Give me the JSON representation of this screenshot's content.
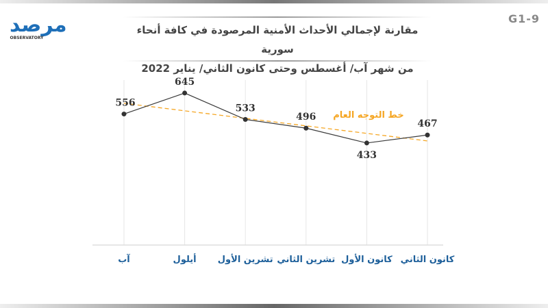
{
  "figure_code": "G1-9",
  "logo": {
    "text": "مرصد",
    "subtext": "OBSERVATORY"
  },
  "chart_data": {
    "type": "line",
    "title": "مقارنة لإجمالي الأحداث الأمنية المرصودة في كافة أنحاء سورية",
    "subtitle": "من شهر آب/ أغسطس وحتى كانون الثاني/ يناير 2022",
    "categories": [
      "آب",
      "أيلول",
      "تشرين الأول",
      "تشرين الثاني",
      "كانون الأول",
      "كانون الثاني"
    ],
    "series": [
      {
        "name": "الأحداث الأمنية",
        "values": [
          556,
          645,
          533,
          496,
          433,
          467
        ],
        "color": "#3a3a3a"
      }
    ],
    "trendline": {
      "label": "خط التوجه العام",
      "type": "linear",
      "color": "#f5a623"
    },
    "ylim": [
      0,
      700
    ],
    "grid": "vertical",
    "xlabel": "",
    "ylabel": ""
  }
}
